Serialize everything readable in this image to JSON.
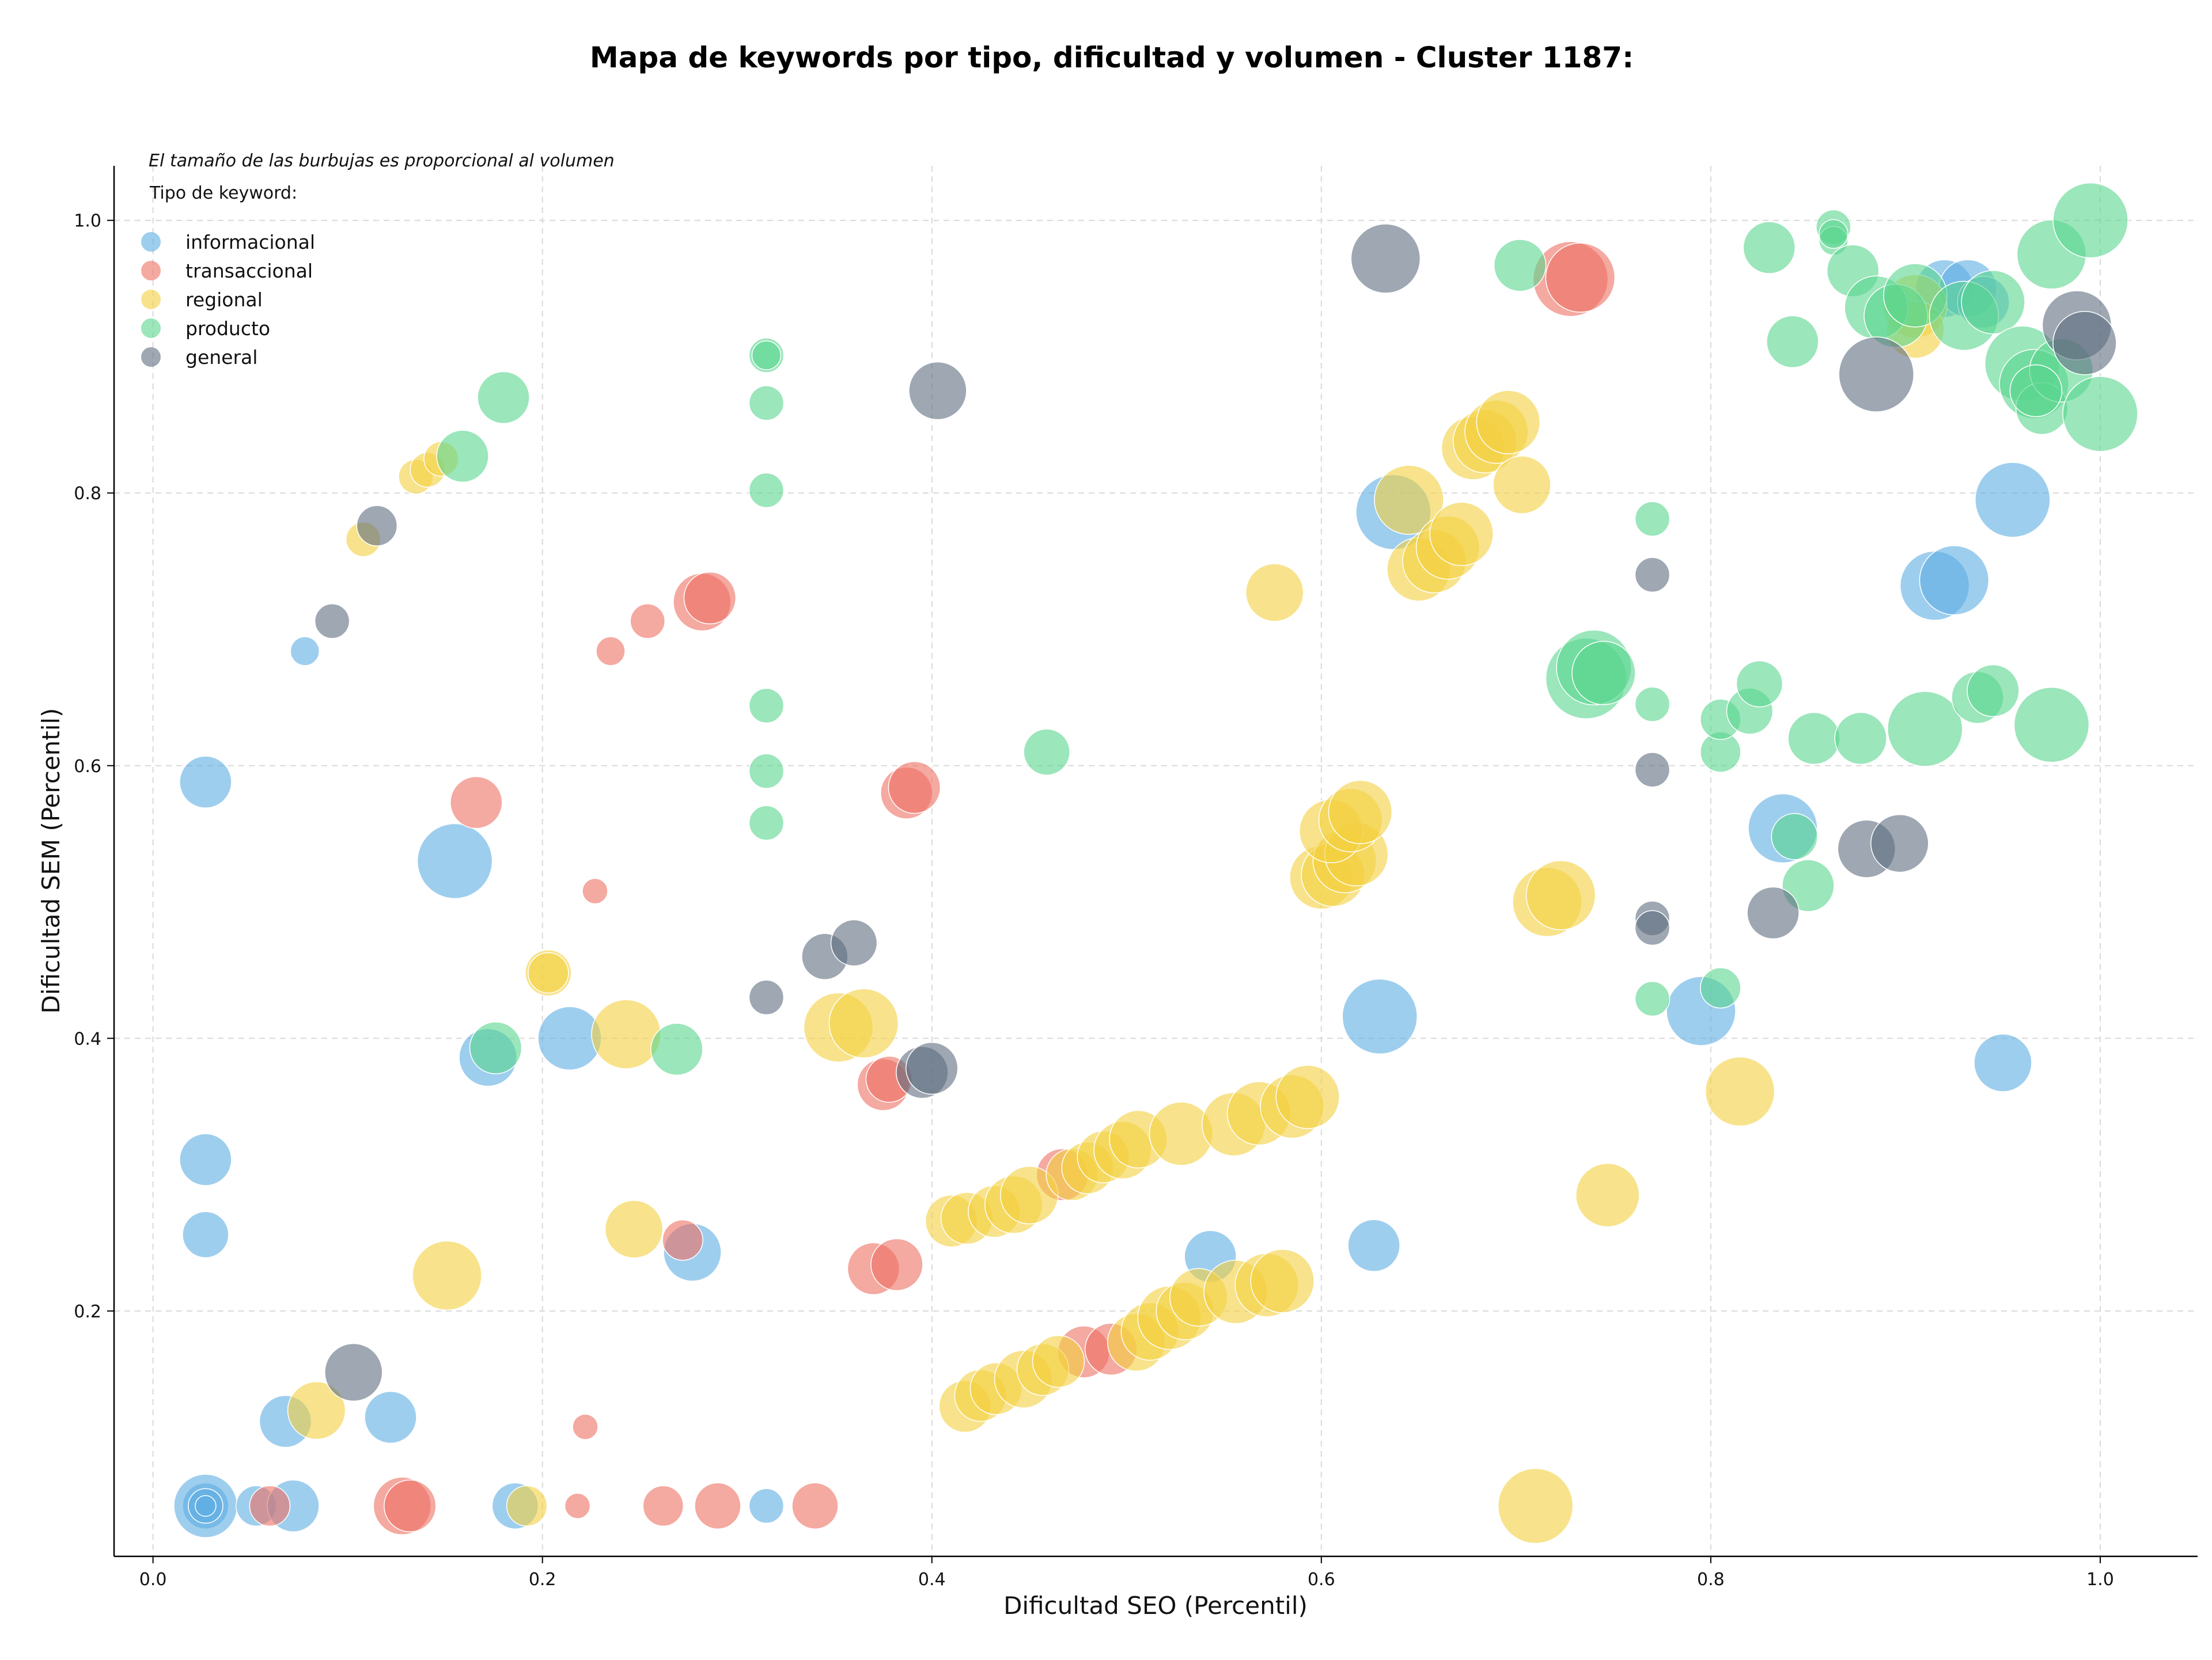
{
  "chart_data": {
    "type": "scatter",
    "title": "Mapa de keywords por tipo, dificultad y volumen - Cluster 1187:",
    "xlabel": "Dificultad SEO (Percentil)",
    "ylabel": "Dificultad SEM (Percentil)",
    "xlim": [
      -0.02,
      1.05
    ],
    "ylim": [
      0.02,
      1.04
    ],
    "x_ticks": [
      0.0,
      0.2,
      0.4,
      0.6,
      0.8,
      1.0
    ],
    "y_ticks": [
      0.2,
      0.4,
      0.6,
      0.8,
      1.0
    ],
    "x_tick_labels": [
      "0.0",
      "0.2",
      "0.4",
      "0.6",
      "0.8",
      "1.0"
    ],
    "y_tick_labels": [
      "0.2",
      "0.4",
      "0.6",
      "0.8",
      "1.0"
    ],
    "grid": true,
    "note": "El tamaño de las burbujas es proporcional al volumen",
    "legend_title": "Tipo de keyword:",
    "legend_position": "top-left",
    "series": [
      {
        "name": "informacional",
        "color": "#5DADE2",
        "points": [
          [
            0.027,
            0.057,
            40
          ],
          [
            0.027,
            0.057,
            55
          ],
          [
            0.027,
            0.057,
            30
          ],
          [
            0.027,
            0.057,
            18
          ],
          [
            0.053,
            0.057,
            35
          ],
          [
            0.072,
            0.057,
            45
          ],
          [
            0.186,
            0.057,
            40
          ],
          [
            0.315,
            0.057,
            30
          ],
          [
            0.078,
            0.684,
            25
          ],
          [
            0.027,
            0.588,
            45
          ],
          [
            0.027,
            0.311,
            45
          ],
          [
            0.027,
            0.256,
            40
          ],
          [
            0.068,
            0.119,
            45
          ],
          [
            0.122,
            0.122,
            45
          ],
          [
            0.155,
            0.53,
            65
          ],
          [
            0.172,
            0.386,
            50
          ],
          [
            0.214,
            0.4,
            55
          ],
          [
            0.277,
            0.243,
            50
          ],
          [
            0.543,
            0.24,
            45
          ],
          [
            0.627,
            0.248,
            45
          ],
          [
            0.63,
            0.416,
            65
          ],
          [
            0.637,
            0.786,
            65
          ],
          [
            0.795,
            0.42,
            60
          ],
          [
            0.837,
            0.554,
            60
          ],
          [
            0.915,
            0.732,
            60
          ],
          [
            0.925,
            0.736,
            60
          ],
          [
            0.955,
            0.795,
            65
          ],
          [
            0.95,
            0.382,
            50
          ],
          [
            0.92,
            0.95,
            50
          ],
          [
            0.932,
            0.95,
            50
          ],
          [
            0.94,
            0.94,
            45
          ]
        ]
      },
      {
        "name": "transaccional",
        "color": "#EC7063",
        "points": [
          [
            0.06,
            0.057,
            35
          ],
          [
            0.128,
            0.057,
            50
          ],
          [
            0.132,
            0.057,
            45
          ],
          [
            0.218,
            0.057,
            22
          ],
          [
            0.262,
            0.057,
            35
          ],
          [
            0.29,
            0.057,
            40
          ],
          [
            0.34,
            0.057,
            40
          ],
          [
            0.222,
            0.115,
            22
          ],
          [
            0.227,
            0.508,
            22
          ],
          [
            0.166,
            0.573,
            45
          ],
          [
            0.235,
            0.684,
            25
          ],
          [
            0.254,
            0.706,
            30
          ],
          [
            0.282,
            0.72,
            50
          ],
          [
            0.286,
            0.723,
            45
          ],
          [
            0.272,
            0.252,
            35
          ],
          [
            0.37,
            0.231,
            45
          ],
          [
            0.382,
            0.234,
            45
          ],
          [
            0.375,
            0.366,
            45
          ],
          [
            0.378,
            0.37,
            40
          ],
          [
            0.387,
            0.58,
            45
          ],
          [
            0.391,
            0.584,
            45
          ],
          [
            0.467,
            0.3,
            45
          ],
          [
            0.478,
            0.17,
            45
          ],
          [
            0.492,
            0.172,
            45
          ],
          [
            0.728,
            0.957,
            65
          ],
          [
            0.733,
            0.958,
            60
          ]
        ]
      },
      {
        "name": "regional",
        "color": "#F4D03F",
        "points": [
          [
            0.192,
            0.057,
            35
          ],
          [
            0.71,
            0.057,
            65
          ],
          [
            0.084,
            0.127,
            50
          ],
          [
            0.151,
            0.226,
            60
          ],
          [
            0.247,
            0.26,
            50
          ],
          [
            0.203,
            0.448,
            40
          ],
          [
            0.203,
            0.448,
            35
          ],
          [
            0.243,
            0.403,
            60
          ],
          [
            0.352,
            0.408,
            60
          ],
          [
            0.365,
            0.411,
            60
          ],
          [
            0.108,
            0.766,
            30
          ],
          [
            0.135,
            0.812,
            30
          ],
          [
            0.141,
            0.817,
            30
          ],
          [
            0.148,
            0.825,
            30
          ],
          [
            0.576,
            0.727,
            50
          ],
          [
            0.747,
            0.285,
            55
          ],
          [
            0.815,
            0.361,
            60
          ],
          [
            0.417,
            0.13,
            45
          ],
          [
            0.425,
            0.138,
            45
          ],
          [
            0.433,
            0.143,
            45
          ],
          [
            0.447,
            0.15,
            50
          ],
          [
            0.457,
            0.157,
            45
          ],
          [
            0.465,
            0.163,
            45
          ],
          [
            0.505,
            0.177,
            50
          ],
          [
            0.512,
            0.185,
            50
          ],
          [
            0.522,
            0.195,
            55
          ],
          [
            0.53,
            0.2,
            50
          ],
          [
            0.537,
            0.21,
            50
          ],
          [
            0.556,
            0.214,
            55
          ],
          [
            0.572,
            0.219,
            55
          ],
          [
            0.58,
            0.222,
            55
          ],
          [
            0.41,
            0.266,
            45
          ],
          [
            0.418,
            0.268,
            45
          ],
          [
            0.432,
            0.273,
            45
          ],
          [
            0.442,
            0.278,
            50
          ],
          [
            0.45,
            0.285,
            50
          ],
          [
            0.472,
            0.3,
            45
          ],
          [
            0.48,
            0.305,
            45
          ],
          [
            0.488,
            0.313,
            45
          ],
          [
            0.498,
            0.318,
            50
          ],
          [
            0.506,
            0.326,
            50
          ],
          [
            0.528,
            0.33,
            55
          ],
          [
            0.555,
            0.337,
            55
          ],
          [
            0.568,
            0.345,
            55
          ],
          [
            0.585,
            0.35,
            55
          ],
          [
            0.593,
            0.357,
            55
          ],
          [
            0.6,
            0.518,
            55
          ],
          [
            0.606,
            0.52,
            55
          ],
          [
            0.612,
            0.53,
            55
          ],
          [
            0.618,
            0.535,
            55
          ],
          [
            0.605,
            0.552,
            55
          ],
          [
            0.615,
            0.56,
            55
          ],
          [
            0.62,
            0.566,
            55
          ],
          [
            0.645,
            0.795,
            60
          ],
          [
            0.65,
            0.744,
            55
          ],
          [
            0.658,
            0.75,
            55
          ],
          [
            0.665,
            0.76,
            55
          ],
          [
            0.672,
            0.77,
            55
          ],
          [
            0.678,
            0.833,
            55
          ],
          [
            0.684,
            0.838,
            55
          ],
          [
            0.69,
            0.845,
            55
          ],
          [
            0.696,
            0.852,
            55
          ],
          [
            0.703,
            0.806,
            50
          ],
          [
            0.716,
            0.5,
            60
          ],
          [
            0.723,
            0.505,
            60
          ],
          [
            0.905,
            0.937,
            55
          ],
          [
            0.905,
            0.92,
            50
          ]
        ]
      },
      {
        "name": "producto",
        "color": "#58D68D",
        "points": [
          [
            0.315,
            0.901,
            30
          ],
          [
            0.315,
            0.901,
            25
          ],
          [
            0.315,
            0.866,
            30
          ],
          [
            0.315,
            0.802,
            30
          ],
          [
            0.315,
            0.644,
            30
          ],
          [
            0.315,
            0.596,
            30
          ],
          [
            0.315,
            0.558,
            30
          ],
          [
            0.18,
            0.87,
            45
          ],
          [
            0.159,
            0.827,
            45
          ],
          [
            0.176,
            0.393,
            45
          ],
          [
            0.269,
            0.392,
            45
          ],
          [
            0.459,
            0.61,
            40
          ],
          [
            0.77,
            0.781,
            30
          ],
          [
            0.77,
            0.645,
            30
          ],
          [
            0.77,
            0.429,
            30
          ],
          [
            0.805,
            0.437,
            35
          ],
          [
            0.805,
            0.61,
            35
          ],
          [
            0.805,
            0.634,
            35
          ],
          [
            0.82,
            0.64,
            40
          ],
          [
            0.825,
            0.66,
            40
          ],
          [
            0.843,
            0.548,
            40
          ],
          [
            0.85,
            0.512,
            45
          ],
          [
            0.853,
            0.62,
            45
          ],
          [
            0.877,
            0.62,
            45
          ],
          [
            0.91,
            0.627,
            65
          ],
          [
            0.937,
            0.65,
            45
          ],
          [
            0.945,
            0.655,
            45
          ],
          [
            0.975,
            0.63,
            65
          ],
          [
            0.736,
            0.664,
            70
          ],
          [
            0.74,
            0.672,
            65
          ],
          [
            0.745,
            0.668,
            55
          ],
          [
            0.702,
            0.967,
            45
          ],
          [
            0.83,
            0.98,
            45
          ],
          [
            0.863,
            0.995,
            30
          ],
          [
            0.863,
            0.985,
            25
          ],
          [
            0.863,
            0.99,
            25
          ],
          [
            0.873,
            0.963,
            45
          ],
          [
            0.842,
            0.911,
            45
          ],
          [
            0.885,
            0.936,
            55
          ],
          [
            0.895,
            0.93,
            55
          ],
          [
            0.905,
            0.945,
            55
          ],
          [
            0.93,
            0.93,
            60
          ],
          [
            0.945,
            0.94,
            55
          ],
          [
            0.96,
            0.895,
            65
          ],
          [
            0.966,
            0.88,
            60
          ],
          [
            0.97,
            0.862,
            45
          ],
          [
            0.975,
            0.975,
            60
          ],
          [
            0.98,
            0.89,
            55
          ],
          [
            0.995,
            1.0,
            65
          ],
          [
            1.0,
            0.858,
            65
          ],
          [
            0.967,
            0.875,
            45
          ]
        ]
      },
      {
        "name": "general",
        "color": "#5D6D7E",
        "points": [
          [
            0.103,
            0.155,
            50
          ],
          [
            0.092,
            0.706,
            30
          ],
          [
            0.115,
            0.776,
            35
          ],
          [
            0.315,
            0.43,
            30
          ],
          [
            0.345,
            0.46,
            40
          ],
          [
            0.36,
            0.47,
            40
          ],
          [
            0.395,
            0.375,
            45
          ],
          [
            0.4,
            0.378,
            45
          ],
          [
            0.403,
            0.875,
            50
          ],
          [
            0.633,
            0.972,
            60
          ],
          [
            0.77,
            0.74,
            30
          ],
          [
            0.77,
            0.597,
            30
          ],
          [
            0.77,
            0.488,
            30
          ],
          [
            0.77,
            0.481,
            30
          ],
          [
            0.832,
            0.492,
            45
          ],
          [
            0.88,
            0.539,
            50
          ],
          [
            0.897,
            0.543,
            50
          ],
          [
            0.885,
            0.887,
            65
          ],
          [
            0.988,
            0.923,
            60
          ],
          [
            0.992,
            0.91,
            55
          ]
        ]
      }
    ]
  }
}
